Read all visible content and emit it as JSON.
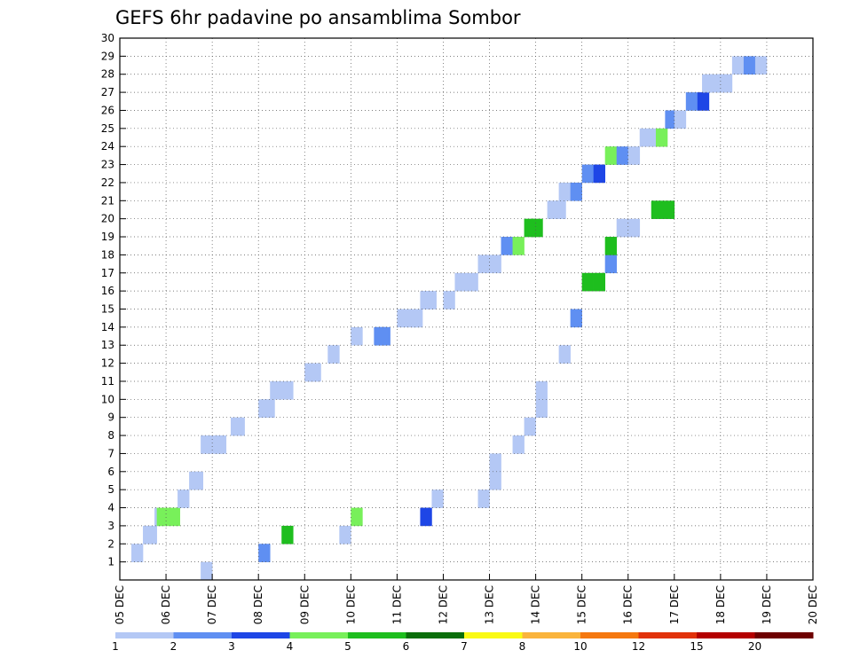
{
  "chart_data": {
    "type": "heatmap",
    "title": "GEFS 6hr padavine po ansamblima Sombor",
    "xlabel": "",
    "ylabel": "",
    "x_tick_labels": [
      "05 DEC",
      "06 DEC",
      "07 DEC",
      "08 DEC",
      "09 DEC",
      "10 DEC",
      "11 DEC",
      "12 DEC",
      "13 DEC",
      "14 DEC",
      "15 DEC",
      "16 DEC",
      "17 DEC",
      "18 DEC",
      "19 DEC",
      "20 DEC"
    ],
    "y_tick_labels": [
      "1",
      "2",
      "3",
      "4",
      "5",
      "6",
      "7",
      "8",
      "9",
      "10",
      "11",
      "12",
      "13",
      "14",
      "15",
      "16",
      "17",
      "18",
      "19",
      "20",
      "21",
      "22",
      "23",
      "24",
      "25",
      "26",
      "27",
      "28",
      "29",
      "30"
    ],
    "xlim": [
      0,
      60
    ],
    "ylim": [
      0,
      30
    ],
    "grid": true,
    "colorbar": {
      "position": "bottom",
      "thresholds": [
        "1",
        "2",
        "3",
        "4",
        "5",
        "6",
        "7",
        "8",
        "10",
        "12",
        "15",
        "20"
      ],
      "colors": [
        "#b4c8f5",
        "#5f8ff2",
        "#1e46e6",
        "#78f05a",
        "#1ebe1e",
        "#0a6e0a",
        "#fafa14",
        "#fab43c",
        "#f5780f",
        "#e1320a",
        "#b40000",
        "#6e0000"
      ]
    },
    "cells": [
      [
        35,
        1,
        10
      ],
      [
        60,
        2,
        25
      ],
      [
        70,
        3,
        50
      ],
      [
        95,
        3,
        10
      ],
      [
        100,
        4,
        45
      ],
      [
        130,
        4,
        30
      ],
      [
        135,
        5,
        10
      ],
      [
        155,
        5,
        15
      ],
      [
        160,
        6,
        10
      ],
      [
        160,
        7,
        10
      ],
      [
        170,
        8,
        10
      ],
      [
        175,
        9,
        15
      ],
      [
        180,
        10,
        10
      ],
      [
        180,
        11,
        10
      ],
      [
        190,
        13,
        15
      ],
      [
        195,
        15,
        25
      ],
      [
        200,
        17,
        50
      ],
      [
        205,
        17,
        50
      ],
      [
        210,
        18,
        20
      ],
      [
        210,
        19,
        50
      ],
      [
        215,
        20,
        10
      ],
      [
        220,
        20,
        10
      ],
      [
        230,
        21,
        50
      ],
      [
        235,
        21,
        50
      ],
      [
        5,
        2,
        5
      ],
      [
        10,
        3,
        10
      ],
      [
        11,
        3,
        10
      ],
      [
        15,
        4,
        10
      ],
      [
        16,
        4,
        40
      ],
      [
        21,
        4,
        45
      ],
      [
        25,
        5,
        10
      ],
      [
        30,
        6,
        5
      ],
      [
        31,
        6,
        10
      ],
      [
        35,
        8,
        10
      ],
      [
        40,
        8,
        10
      ],
      [
        41,
        8,
        10
      ],
      [
        48,
        9,
        10
      ],
      [
        49,
        9,
        10
      ],
      [
        60,
        10,
        10
      ],
      [
        61,
        10,
        10
      ],
      [
        62,
        10,
        10
      ],
      [
        65,
        11,
        15
      ],
      [
        70,
        11,
        10
      ],
      [
        80,
        12,
        10
      ],
      [
        81,
        12,
        15
      ],
      [
        82,
        12,
        15
      ],
      [
        90,
        13,
        15
      ],
      [
        100,
        14,
        10
      ],
      [
        110,
        14,
        20
      ],
      [
        111,
        14,
        20
      ],
      [
        112,
        14,
        20
      ],
      [
        120,
        15,
        10
      ],
      [
        125,
        15,
        15
      ],
      [
        126,
        15,
        15
      ],
      [
        130,
        16,
        10
      ],
      [
        131,
        16,
        10
      ],
      [
        132,
        16,
        10
      ],
      [
        140,
        16,
        15
      ],
      [
        145,
        17,
        10
      ],
      [
        150,
        17,
        10
      ],
      [
        155,
        18,
        15
      ],
      [
        160,
        18,
        10
      ],
      [
        165,
        19,
        20
      ],
      [
        170,
        19,
        40
      ],
      [
        175,
        20,
        50
      ],
      [
        178,
        20,
        50
      ],
      [
        185,
        21,
        10
      ],
      [
        188,
        21,
        15
      ],
      [
        190,
        22,
        10
      ],
      [
        195,
        22,
        20
      ],
      [
        200,
        23,
        20
      ],
      [
        205,
        23,
        35
      ],
      [
        210,
        24,
        40
      ],
      [
        215,
        24,
        20
      ],
      [
        220,
        24,
        10
      ],
      [
        225,
        25,
        10
      ],
      [
        230,
        25,
        15
      ],
      [
        232,
        25,
        45
      ],
      [
        236,
        26,
        20
      ],
      [
        240,
        26,
        10
      ],
      [
        245,
        27,
        20
      ],
      [
        250,
        27,
        30
      ],
      [
        252,
        28,
        10
      ],
      [
        255,
        28,
        10
      ],
      [
        258,
        28,
        10
      ],
      [
        260,
        28,
        15
      ],
      [
        265,
        29,
        10
      ],
      [
        270,
        29,
        25
      ],
      [
        275,
        29,
        15
      ]
    ]
  }
}
